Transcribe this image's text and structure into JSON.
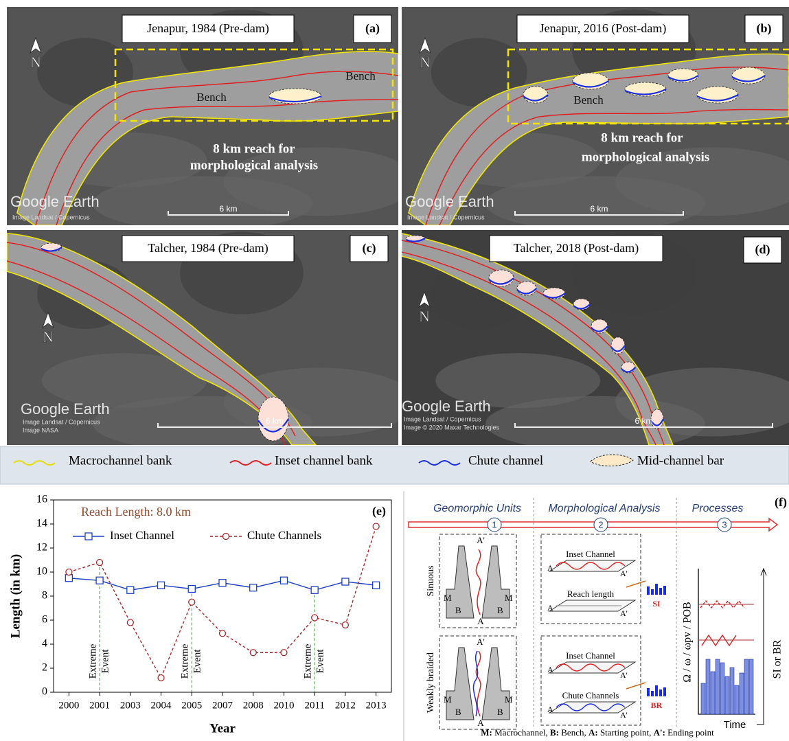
{
  "panels": [
    {
      "label": "(a)",
      "title": "Jenapur, 1984 (Pre-dam)",
      "north": "N",
      "annotations": [
        "Bench",
        "Bench",
        "8 km reach for",
        "morphological analysis"
      ],
      "watermark": "Google Earth",
      "credits": [
        "Image Landsat / Copernicus"
      ],
      "scale": "6 km"
    },
    {
      "label": "(b)",
      "title": "Jenapur, 2016 (Post-dam)",
      "north": "N",
      "annotations": [
        "Bench",
        "8 km reach for",
        "morphological analysis"
      ],
      "watermark": "Google Earth",
      "credits": [
        "Image Landsat / Copernicus"
      ],
      "scale": "6 km"
    },
    {
      "label": "(c)",
      "title": "Talcher, 1984 (Pre-dam)",
      "north": "N",
      "watermark": "Google Earth",
      "credits": [
        "Image Landsat / Copernicus",
        "Image NASA"
      ],
      "scale": "6 km"
    },
    {
      "label": "(d)",
      "title": "Talcher, 2018 (Post-dam)",
      "north": "N",
      "watermark": "Google Earth",
      "credits": [
        "Image Landsat / Copernicus",
        "Image © 2020 Maxar Technologies"
      ],
      "scale": "6 km"
    }
  ],
  "legend": [
    "Macrochannel bank",
    "Inset channel bank",
    "Chute channel",
    "Mid-channel bar"
  ],
  "chart_data": {
    "type": "line",
    "label": "(e)",
    "annotation": "Reach Length: 8.0 km",
    "xlabel": "Year",
    "ylabel": "Length (in km)",
    "categories": [
      "2000",
      "2001",
      "2003",
      "2004",
      "2005",
      "2007",
      "2008",
      "2010",
      "2011",
      "2012",
      "2013"
    ],
    "series": [
      {
        "name": "Inset Channel",
        "color": "#1c3fc4",
        "marker": "square",
        "dashed": false,
        "values": [
          9.5,
          9.3,
          8.5,
          8.9,
          8.6,
          9.1,
          8.7,
          9.3,
          8.5,
          9.2,
          8.9
        ]
      },
      {
        "name": "Chute Channels",
        "color": "#a52a2a",
        "marker": "circle",
        "dashed": true,
        "values": [
          10.0,
          10.8,
          5.8,
          1.2,
          7.5,
          4.9,
          3.3,
          3.3,
          6.2,
          5.6,
          13.8
        ]
      }
    ],
    "events": [
      {
        "category": "2001",
        "lines": [
          "Extreme",
          "Event"
        ]
      },
      {
        "category": "2005",
        "lines": [
          "Extreme",
          "Event"
        ]
      },
      {
        "category": "2011",
        "lines": [
          "Extreme",
          "Event"
        ]
      }
    ],
    "ylim": [
      0,
      16
    ],
    "yticks": [
      0,
      2,
      4,
      6,
      8,
      10,
      12,
      14,
      16
    ]
  },
  "diagram": {
    "label": "(f)",
    "columns": [
      "Geomorphic Units",
      "Morphological Analysis",
      "Processes"
    ],
    "steps": [
      "1",
      "2",
      "3"
    ],
    "patterns": [
      "Sinuous",
      "Weakly braided"
    ],
    "schematic_labels": {
      "macro": "M",
      "bench": "B",
      "start": "A",
      "end": "A'"
    },
    "analysis": [
      [
        "Inset Channel",
        "Reach length"
      ],
      [
        "Inset Channel",
        "Chute Channels"
      ]
    ],
    "indices": [
      "SI",
      "BR"
    ],
    "process_axis": {
      "y": "Ω / ω / ωpv / POB",
      "x": "Time",
      "right": "SI or BR"
    },
    "footnote": [
      {
        "key": "M:",
        "text": " Macrochannel, "
      },
      {
        "key": "B:",
        "text": " Bench, "
      },
      {
        "key": "A:",
        "text": " Starting point, "
      },
      {
        "key": "A':",
        "text": " Ending point"
      }
    ]
  }
}
